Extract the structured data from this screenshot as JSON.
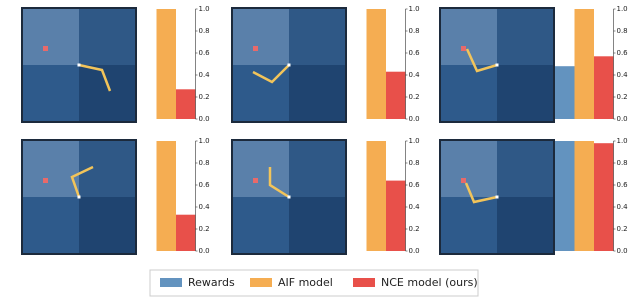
{
  "chart_data": {
    "type": "bar",
    "categories": [
      null,
      null,
      null,
      null,
      null,
      null
    ],
    "series": [
      {
        "name": "Rewards",
        "color": "#6393bf",
        "values": [
          0,
          0,
          0.48,
          0,
          0,
          1.0
        ]
      },
      {
        "name": "AIF model",
        "color": "#f5ad52",
        "values": [
          1.0,
          1.0,
          1.0,
          1.0,
          1.0,
          1.0
        ]
      },
      {
        "name": "NCE model (ours)",
        "color": "#e8504a",
        "values": [
          0.27,
          0.43,
          0.57,
          0.33,
          0.64,
          0.98
        ]
      }
    ],
    "ylim": [
      0,
      1.0
    ],
    "yticks": [
      {
        "value": 0,
        "label": "0.0"
      },
      0.2,
      0.4,
      0.6,
      0.8,
      {
        "value": 1.0,
        "label": "1.0"
      }
    ]
  }
}
